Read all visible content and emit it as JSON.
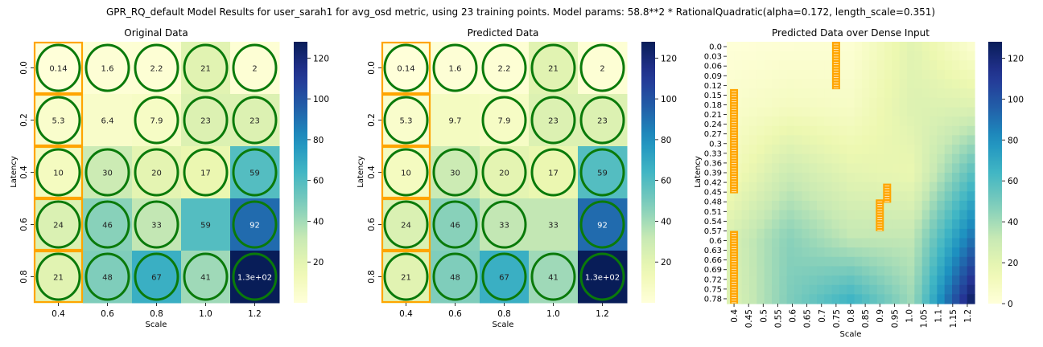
{
  "suptitle": "GPR_RQ_default Model Results for user_sarah1 for avg_osd metric, using 23 training points. Model params: 58.8**2 * RationalQuadratic(alpha=0.172, length_scale=0.351)",
  "colormap": {
    "name": "YlGnBu",
    "vmin": 0,
    "vmax": 128,
    "ticks": [
      0,
      20,
      40,
      60,
      80,
      100,
      120
    ]
  },
  "colors": {
    "training_circle": "#0a7a0a",
    "train_box": "#ffa500"
  },
  "chart_data": [
    {
      "type": "heatmap",
      "title": "Original Data",
      "xlabel": "Scale",
      "ylabel": "Latency",
      "x_ticks": [
        "0.4",
        "0.6",
        "0.8",
        "1.0",
        "1.2"
      ],
      "y_ticks": [
        "0.0",
        "0.2",
        "0.4",
        "0.6",
        "0.8"
      ],
      "values": [
        [
          0.14,
          1.6,
          2.2,
          21,
          2
        ],
        [
          5.3,
          6.4,
          7.9,
          23,
          23
        ],
        [
          10,
          30,
          20,
          17,
          59
        ],
        [
          24,
          46,
          33,
          59,
          92
        ],
        [
          21,
          48,
          67,
          41,
          130
        ]
      ],
      "labels": [
        [
          "0.14",
          "1.6",
          "2.2",
          "21",
          "2"
        ],
        [
          "5.3",
          "6.4",
          "7.9",
          "23",
          "23"
        ],
        [
          "10",
          "30",
          "20",
          "17",
          "59"
        ],
        [
          "24",
          "46",
          "33",
          "59",
          "92"
        ],
        [
          "21",
          "48",
          "67",
          "41",
          "1.3e+02"
        ]
      ],
      "training_points": [
        [
          0,
          0
        ],
        [
          0,
          1
        ],
        [
          0,
          2
        ],
        [
          0,
          3
        ],
        [
          0,
          4
        ],
        [
          1,
          0
        ],
        [
          1,
          2
        ],
        [
          1,
          3
        ],
        [
          1,
          4
        ],
        [
          2,
          0
        ],
        [
          2,
          1
        ],
        [
          2,
          2
        ],
        [
          2,
          3
        ],
        [
          2,
          4
        ],
        [
          3,
          0
        ],
        [
          3,
          1
        ],
        [
          3,
          2
        ],
        [
          3,
          4
        ],
        [
          4,
          0
        ],
        [
          4,
          1
        ],
        [
          4,
          2
        ],
        [
          4,
          3
        ],
        [
          4,
          4
        ]
      ],
      "highlighted_column": 0,
      "colorbar_ticks": [
        "20",
        "40",
        "60",
        "80",
        "100",
        "120"
      ]
    },
    {
      "type": "heatmap",
      "title": "Predicted Data",
      "xlabel": "Scale",
      "ylabel": "Latency",
      "x_ticks": [
        "0.4",
        "0.6",
        "0.8",
        "1.0",
        "1.2"
      ],
      "y_ticks": [
        "0.0",
        "0.2",
        "0.4",
        "0.6",
        "0.8"
      ],
      "values": [
        [
          0.14,
          1.6,
          2.2,
          21,
          2
        ],
        [
          5.3,
          9.7,
          7.9,
          23,
          23
        ],
        [
          10,
          30,
          20,
          17,
          59
        ],
        [
          24,
          46,
          33,
          33,
          92
        ],
        [
          21,
          48,
          67,
          41,
          130
        ]
      ],
      "labels": [
        [
          "0.14",
          "1.6",
          "2.2",
          "21",
          "2"
        ],
        [
          "5.3",
          "9.7",
          "7.9",
          "23",
          "23"
        ],
        [
          "10",
          "30",
          "20",
          "17",
          "59"
        ],
        [
          "24",
          "46",
          "33",
          "33",
          "92"
        ],
        [
          "21",
          "48",
          "67",
          "41",
          "1.3e+02"
        ]
      ],
      "training_points": [
        [
          0,
          0
        ],
        [
          0,
          1
        ],
        [
          0,
          2
        ],
        [
          0,
          3
        ],
        [
          0,
          4
        ],
        [
          1,
          0
        ],
        [
          1,
          2
        ],
        [
          1,
          3
        ],
        [
          1,
          4
        ],
        [
          2,
          0
        ],
        [
          2,
          1
        ],
        [
          2,
          2
        ],
        [
          2,
          3
        ],
        [
          2,
          4
        ],
        [
          3,
          0
        ],
        [
          3,
          1
        ],
        [
          3,
          2
        ],
        [
          3,
          4
        ],
        [
          4,
          0
        ],
        [
          4,
          1
        ],
        [
          4,
          2
        ],
        [
          4,
          3
        ],
        [
          4,
          4
        ]
      ],
      "highlighted_column": 0,
      "colorbar_ticks": [
        "20",
        "40",
        "60",
        "80",
        "100",
        "120"
      ]
    },
    {
      "type": "heatmap",
      "title": "Predicted Data over Dense Input",
      "xlabel": "Scale",
      "ylabel": "Latency",
      "x_ticks": [
        "0.4",
        "0.45",
        "0.5",
        "0.55",
        "0.6",
        "0.65",
        "0.7",
        "0.75",
        "0.8",
        "0.85",
        "0.9",
        "0.95",
        "1.0",
        "1.05",
        "1.1",
        "1.15",
        "1.2"
      ],
      "y_ticks": [
        "0.0",
        "0.03",
        "0.06",
        "0.09",
        "0.12",
        "0.15",
        "0.18",
        "0.21",
        "0.24",
        "0.27",
        "0.3",
        "0.33",
        "0.36",
        "0.39",
        "0.42",
        "0.45",
        "0.48",
        "0.51",
        "0.54",
        "0.57",
        "0.6",
        "0.63",
        "0.66",
        "0.69",
        "0.72",
        "0.75",
        "0.78"
      ],
      "x_range": [
        0.4,
        1.2
      ],
      "y_range": [
        0.0,
        0.8
      ],
      "coarse_grid": {
        "x": [
          0.4,
          0.6,
          0.8,
          1.0,
          1.2
        ],
        "y": [
          0.0,
          0.2,
          0.4,
          0.6,
          0.8
        ],
        "values": [
          [
            0.14,
            1.6,
            2.2,
            21,
            2
          ],
          [
            5.3,
            9.7,
            7.9,
            23,
            23
          ],
          [
            10,
            30,
            20,
            17,
            59
          ],
          [
            24,
            46,
            33,
            33,
            92
          ],
          [
            21,
            48,
            67,
            41,
            130
          ]
        ]
      },
      "training_points": [
        {
          "x": 0.4,
          "y_from": 0.15,
          "y_to": 0.45
        },
        {
          "x": 0.4,
          "y_from": 0.6,
          "y_to": 0.8
        },
        {
          "x": 0.75,
          "y_from": 0.0,
          "y_to": 0.12
        },
        {
          "x": 0.925,
          "y_from": 0.45,
          "y_to": 0.48
        },
        {
          "x": 0.9,
          "y_from": 0.5,
          "y_to": 0.57
        }
      ],
      "colorbar_ticks": [
        "0",
        "20",
        "40",
        "60",
        "80",
        "100",
        "120"
      ]
    }
  ]
}
